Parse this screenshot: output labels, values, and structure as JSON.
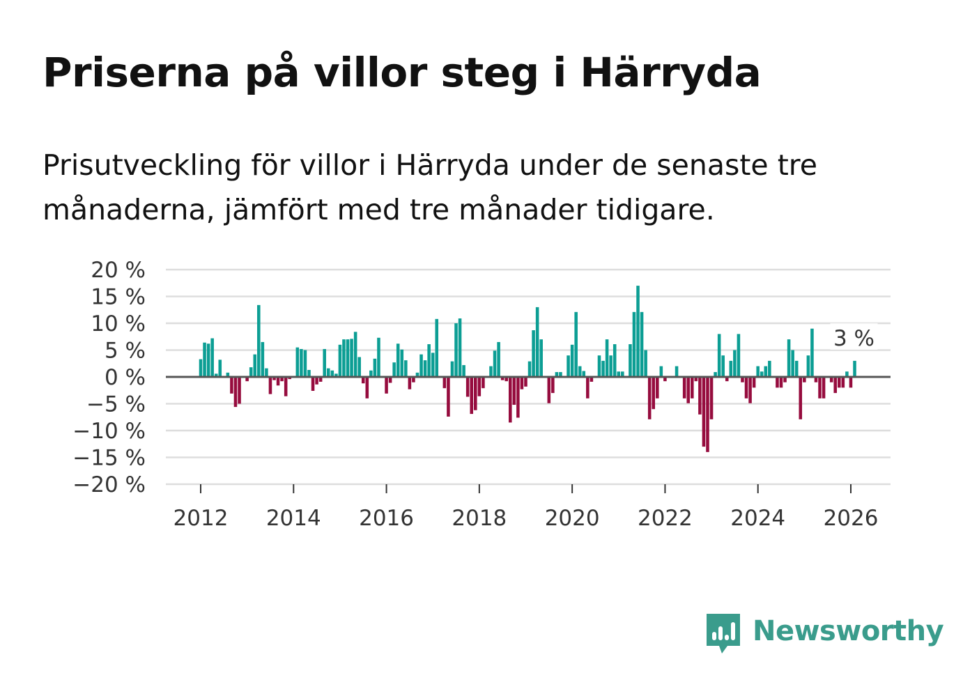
{
  "title": "Priserna på villor steg i Härryda",
  "subtitle": "Prisutveckling för villor i Härryda under de senaste tre månaderna, jämfört med tre månader tidigare.",
  "brand": "Newsworthy",
  "colors": {
    "positive": "#0c9e94",
    "negative": "#960c3e",
    "grid": "#dddddd",
    "zero": "#555555",
    "brand": "#3a9c8c"
  },
  "chart_data": {
    "type": "bar",
    "title": "",
    "xlabel": "",
    "ylabel": "",
    "ylim": [
      -20,
      20
    ],
    "yticks": [
      20,
      15,
      10,
      5,
      0,
      -5,
      -10,
      -15,
      -20
    ],
    "ytick_labels": [
      "20 %",
      "15 %",
      "10 %",
      "5 %",
      "0 %",
      "−5 %",
      "−10 %",
      "−15 %",
      "−20 %"
    ],
    "xticks": [
      2012,
      2014,
      2016,
      2018,
      2020,
      2022,
      2024,
      2026
    ],
    "xtick_labels": [
      "2012",
      "2014",
      "2016",
      "2018",
      "2020",
      "2022",
      "2024",
      "2026"
    ],
    "x_start": 2012.0,
    "step_years": 0.08333,
    "values": [
      3.3,
      6.4,
      6.2,
      7.2,
      0.6,
      3.2,
      0,
      0.8,
      -3.1,
      -5.6,
      -5,
      0,
      -0.8,
      1.8,
      4.2,
      13.4,
      6.5,
      1.6,
      -3.2,
      -0.6,
      -1.6,
      -0.8,
      -3.6,
      -0.4,
      0,
      5.5,
      5.2,
      5,
      1.3,
      -2.6,
      -1.4,
      -0.9,
      5.2,
      1.6,
      1.2,
      0.6,
      6,
      7,
      7,
      7.1,
      8.4,
      3.7,
      -1.2,
      -4,
      1.2,
      3.4,
      7.3,
      0,
      -3.1,
      -1.1,
      2.7,
      6.2,
      5.1,
      3.1,
      -2.3,
      -1,
      0.8,
      4.2,
      3.1,
      6.1,
      4.5,
      10.8,
      0,
      -2.1,
      -7.4,
      2.9,
      10,
      10.9,
      2.2,
      -3.7,
      -6.9,
      -6.2,
      -3.6,
      -2.1,
      0,
      2,
      4.9,
      6.5,
      -0.6,
      -0.8,
      -8.5,
      -5.2,
      -7.6,
      -2.3,
      -1.8,
      2.9,
      8.7,
      13,
      7,
      0,
      -4.9,
      -3,
      0.9,
      0.9,
      0,
      4,
      6,
      12.1,
      2,
      1.1,
      -4,
      -0.9,
      0,
      4,
      3,
      7,
      4,
      6.1,
      1,
      1,
      0,
      6.1,
      12.1,
      17,
      12.1,
      5,
      -7.9,
      -6,
      -4,
      2,
      -0.8,
      0,
      0,
      2,
      0,
      -4,
      -4.9,
      -4,
      -0.8,
      -7,
      -13,
      -14,
      -7.9,
      0.9,
      8,
      4,
      -0.8,
      3,
      5,
      8,
      -1,
      -4,
      -4.9,
      -2,
      2,
      1,
      2,
      3,
      0,
      -2,
      -2,
      -1,
      7,
      5,
      3,
      -7.9,
      -1,
      4,
      9,
      -1,
      -4,
      -4,
      0,
      -1,
      -3,
      -2,
      -2,
      1,
      -2,
      3
    ],
    "annotation": {
      "label": "3 %",
      "target": "last bar"
    }
  }
}
